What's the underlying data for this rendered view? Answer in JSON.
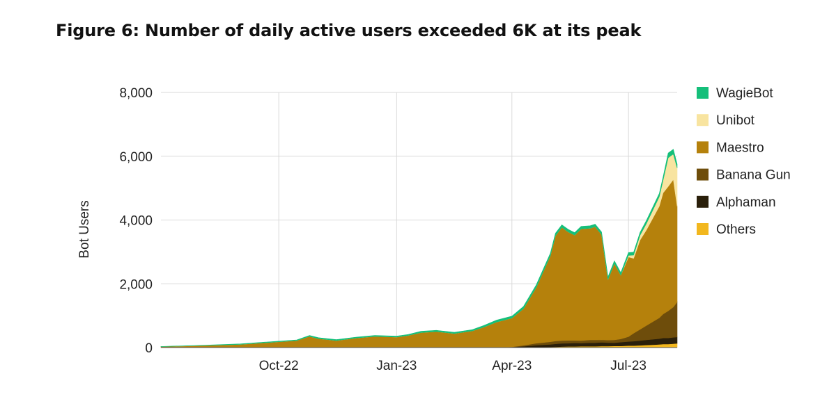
{
  "figure_title": "Figure 6: Number of daily active users exceeded 6K at its peak",
  "chart_data": {
    "type": "area",
    "stacked": true,
    "title": "Figure 6: Number of daily active users exceeded 6K at its peak",
    "xlabel": "",
    "ylabel": "Bot Users",
    "ylim": [
      0,
      8000
    ],
    "yticks": [
      0,
      2000,
      4000,
      6000,
      8000
    ],
    "ytick_labels": [
      "0",
      "2,000",
      "4,000",
      "6,000",
      "8,000"
    ],
    "xlim": [
      "2022-07-01",
      "2023-08-08"
    ],
    "xticks": [
      "2022-10-01",
      "2023-01-01",
      "2023-04-01",
      "2023-07-01"
    ],
    "xtick_labels": [
      "Oct-22",
      "Jan-23",
      "Apr-23",
      "Jul-23"
    ],
    "grid": true,
    "legend_position": "right",
    "x": [
      "2022-07-01",
      "2022-08-01",
      "2022-09-01",
      "2022-09-20",
      "2022-10-01",
      "2022-10-15",
      "2022-10-25",
      "2022-11-01",
      "2022-11-15",
      "2022-12-01",
      "2022-12-15",
      "2023-01-01",
      "2023-01-10",
      "2023-01-20",
      "2023-02-01",
      "2023-02-15",
      "2023-03-01",
      "2023-03-10",
      "2023-03-20",
      "2023-04-01",
      "2023-04-10",
      "2023-04-20",
      "2023-05-01",
      "2023-05-05",
      "2023-05-10",
      "2023-05-15",
      "2023-05-20",
      "2023-05-25",
      "2023-06-01",
      "2023-06-05",
      "2023-06-10",
      "2023-06-15",
      "2023-06-20",
      "2023-06-25",
      "2023-07-01",
      "2023-07-05",
      "2023-07-10",
      "2023-07-15",
      "2023-07-20",
      "2023-07-25",
      "2023-07-28",
      "2023-08-01",
      "2023-08-05",
      "2023-08-08"
    ],
    "series": [
      {
        "name": "Others",
        "color": "#F2B71E",
        "values": [
          0,
          0,
          0,
          0,
          0,
          0,
          0,
          0,
          0,
          0,
          0,
          0,
          0,
          0,
          0,
          0,
          0,
          0,
          0,
          5,
          10,
          15,
          20,
          25,
          30,
          35,
          35,
          40,
          40,
          40,
          45,
          45,
          50,
          50,
          60,
          60,
          70,
          80,
          90,
          100,
          110,
          110,
          120,
          130
        ]
      },
      {
        "name": "Alphaman",
        "color": "#2A1F0A",
        "values": [
          0,
          0,
          0,
          0,
          0,
          0,
          0,
          0,
          0,
          0,
          0,
          0,
          0,
          0,
          0,
          0,
          0,
          0,
          0,
          10,
          30,
          60,
          80,
          90,
          100,
          100,
          110,
          100,
          110,
          110,
          120,
          110,
          100,
          120,
          130,
          140,
          150,
          160,
          170,
          180,
          190,
          190,
          200,
          200
        ]
      },
      {
        "name": "Banana Gun",
        "color": "#6E4D0B",
        "values": [
          0,
          0,
          0,
          0,
          0,
          0,
          0,
          0,
          0,
          0,
          0,
          0,
          0,
          0,
          0,
          0,
          0,
          0,
          0,
          10,
          30,
          60,
          80,
          90,
          90,
          90,
          80,
          80,
          90,
          90,
          80,
          80,
          90,
          100,
          150,
          250,
          350,
          450,
          550,
          650,
          750,
          850,
          950,
          1100
        ]
      },
      {
        "name": "Maestro",
        "color": "#B5810C",
        "values": [
          30,
          60,
          100,
          150,
          180,
          220,
          350,
          280,
          220,
          300,
          350,
          330,
          380,
          470,
          500,
          440,
          520,
          640,
          800,
          900,
          1150,
          1750,
          2700,
          3300,
          3550,
          3400,
          3300,
          3500,
          3500,
          3550,
          3300,
          1900,
          2400,
          2000,
          2500,
          2350,
          2800,
          3000,
          3250,
          3500,
          3800,
          3900,
          4000,
          3000
        ]
      },
      {
        "name": "Unibot",
        "color": "#F8E4A0",
        "values": [
          0,
          0,
          0,
          0,
          0,
          0,
          0,
          0,
          0,
          0,
          0,
          0,
          0,
          0,
          0,
          0,
          0,
          0,
          0,
          0,
          0,
          0,
          0,
          0,
          0,
          0,
          0,
          0,
          0,
          0,
          0,
          0,
          0,
          0,
          50,
          100,
          150,
          200,
          250,
          300,
          400,
          900,
          800,
          1200
        ]
      },
      {
        "name": "WagieBot",
        "color": "#15BF7A",
        "values": [
          5,
          10,
          15,
          20,
          20,
          20,
          30,
          30,
          30,
          30,
          30,
          30,
          30,
          40,
          40,
          40,
          40,
          50,
          60,
          60,
          70,
          80,
          80,
          80,
          80,
          80,
          80,
          80,
          80,
          80,
          80,
          80,
          80,
          80,
          90,
          90,
          90,
          100,
          100,
          100,
          100,
          150,
          150,
          120
        ]
      }
    ],
    "legend": [
      "WagieBot",
      "Unibot",
      "Maestro",
      "Banana Gun",
      "Alphaman",
      "Others"
    ]
  }
}
